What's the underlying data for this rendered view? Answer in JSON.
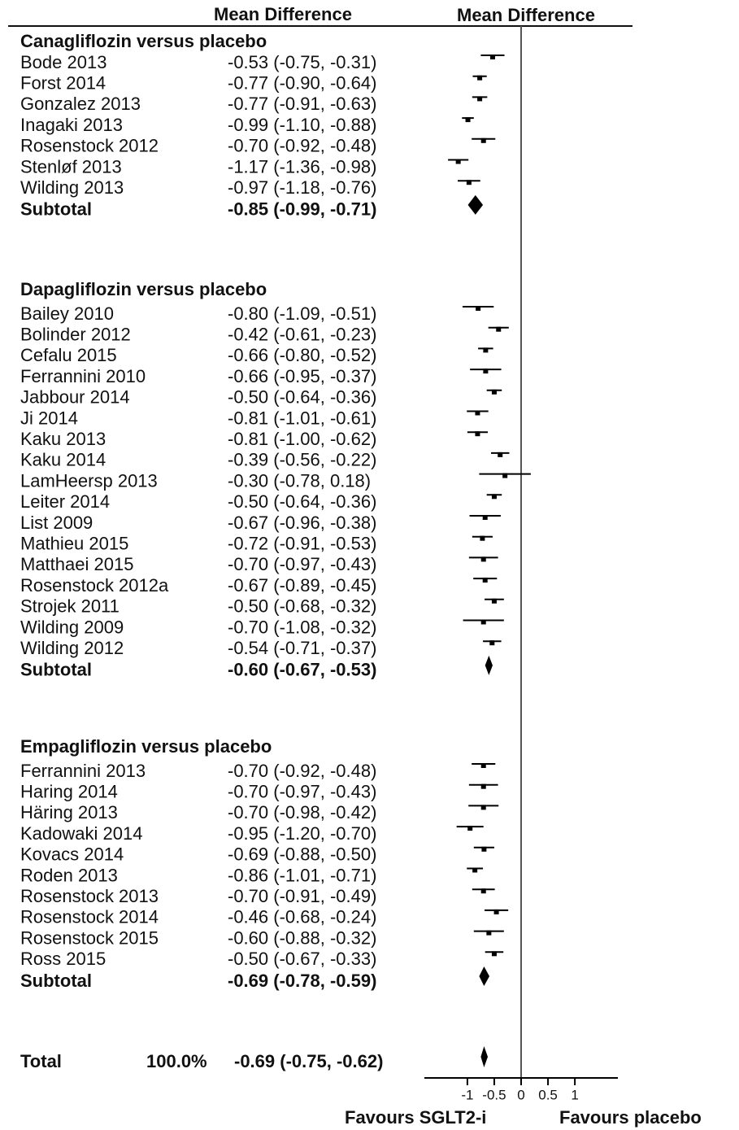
{
  "chart_data": {
    "type": "forest",
    "column_headers": [
      "Mean Difference",
      "Mean Difference"
    ],
    "groups": [
      {
        "title": "Canagliflozin versus placebo",
        "studies": [
          {
            "name": "Bode 2013",
            "value": -0.53,
            "lower": -0.75,
            "upper": -0.31,
            "label": "-0.53 (-0.75, -0.31)"
          },
          {
            "name": "Forst 2014",
            "value": -0.77,
            "lower": -0.9,
            "upper": -0.64,
            "label": "-0.77 (-0.90, -0.64)"
          },
          {
            "name": "Gonzalez 2013",
            "value": -0.77,
            "lower": -0.91,
            "upper": -0.63,
            "label": "-0.77 (-0.91, -0.63)"
          },
          {
            "name": "Inagaki 2013",
            "value": -0.99,
            "lower": -1.1,
            "upper": -0.88,
            "label": "-0.99 (-1.10, -0.88)"
          },
          {
            "name": "Rosenstock 2012",
            "value": -0.7,
            "lower": -0.92,
            "upper": -0.48,
            "label": "-0.70 (-0.92, -0.48)"
          },
          {
            "name": "Stenløf 2013",
            "value": -1.17,
            "lower": -1.36,
            "upper": -0.98,
            "label": "-1.17 (-1.36, -0.98)"
          },
          {
            "name": "Wilding 2013",
            "value": -0.97,
            "lower": -1.18,
            "upper": -0.76,
            "label": "-0.97 (-1.18, -0.76)"
          }
        ],
        "subtotal": {
          "name": "Subtotal",
          "value": -0.85,
          "lower": -0.99,
          "upper": -0.71,
          "label": "-0.85 (-0.99, -0.71)"
        }
      },
      {
        "title": "Dapagliflozin versus placebo",
        "studies": [
          {
            "name": "Bailey 2010",
            "value": -0.8,
            "lower": -1.09,
            "upper": -0.51,
            "label": "-0.80 (-1.09, -0.51)"
          },
          {
            "name": "Bolinder 2012",
            "value": -0.42,
            "lower": -0.61,
            "upper": -0.23,
            "label": "-0.42 (-0.61, -0.23)"
          },
          {
            "name": "Cefalu 2015",
            "value": -0.66,
            "lower": -0.8,
            "upper": -0.52,
            "label": "-0.66 (-0.80, -0.52)"
          },
          {
            "name": "Ferrannini 2010",
            "value": -0.66,
            "lower": -0.95,
            "upper": -0.37,
            "label": "-0.66 (-0.95, -0.37)"
          },
          {
            "name": "Jabbour 2014",
            "value": -0.5,
            "lower": -0.64,
            "upper": -0.36,
            "label": "-0.50 (-0.64, -0.36)"
          },
          {
            "name": "Ji 2014",
            "value": -0.81,
            "lower": -1.01,
            "upper": -0.61,
            "label": "-0.81 (-1.01, -0.61)"
          },
          {
            "name": "Kaku 2013",
            "value": -0.81,
            "lower": -1.0,
            "upper": -0.62,
            "label": "-0.81 (-1.00, -0.62)"
          },
          {
            "name": "Kaku 2014",
            "value": -0.39,
            "lower": -0.56,
            "upper": -0.22,
            "label": "-0.39 (-0.56, -0.22)"
          },
          {
            "name": "LamHeersp 2013",
            "value": -0.3,
            "lower": -0.78,
            "upper": 0.18,
            "label": "-0.30 (-0.78, 0.18)"
          },
          {
            "name": "Leiter 2014",
            "value": -0.5,
            "lower": -0.64,
            "upper": -0.36,
            "label": "-0.50 (-0.64, -0.36)"
          },
          {
            "name": "List 2009",
            "value": -0.67,
            "lower": -0.96,
            "upper": -0.38,
            "label": "-0.67 (-0.96, -0.38)"
          },
          {
            "name": "Mathieu 2015",
            "value": -0.72,
            "lower": -0.91,
            "upper": -0.53,
            "label": "-0.72 (-0.91, -0.53)"
          },
          {
            "name": "Matthaei 2015",
            "value": -0.7,
            "lower": -0.97,
            "upper": -0.43,
            "label": "-0.70 (-0.97, -0.43)"
          },
          {
            "name": "Rosenstock 2012a",
            "value": -0.67,
            "lower": -0.89,
            "upper": -0.45,
            "label": "-0.67 (-0.89, -0.45)"
          },
          {
            "name": "Strojek 2011",
            "value": -0.5,
            "lower": -0.68,
            "upper": -0.32,
            "label": "-0.50 (-0.68, -0.32)"
          },
          {
            "name": "Wilding 2009",
            "value": -0.7,
            "lower": -1.08,
            "upper": -0.32,
            "label": "-0.70 (-1.08, -0.32)"
          },
          {
            "name": "Wilding 2012",
            "value": -0.54,
            "lower": -0.71,
            "upper": -0.37,
            "label": "-0.54 (-0.71, -0.37)"
          }
        ],
        "subtotal": {
          "name": "Subtotal",
          "value": -0.6,
          "lower": -0.67,
          "upper": -0.53,
          "label": "-0.60 (-0.67, -0.53)"
        }
      },
      {
        "title": "Empagliflozin versus placebo",
        "studies": [
          {
            "name": "Ferrannini 2013",
            "value": -0.7,
            "lower": -0.92,
            "upper": -0.48,
            "label": "-0.70 (-0.92, -0.48)"
          },
          {
            "name": "Haring 2014",
            "value": -0.7,
            "lower": -0.97,
            "upper": -0.43,
            "label": "-0.70 (-0.97, -0.43)"
          },
          {
            "name": "Häring 2013",
            "value": -0.7,
            "lower": -0.98,
            "upper": -0.42,
            "label": "-0.70 (-0.98, -0.42)"
          },
          {
            "name": "Kadowaki 2014",
            "value": -0.95,
            "lower": -1.2,
            "upper": -0.7,
            "label": "-0.95 (-1.20, -0.70)"
          },
          {
            "name": "Kovacs 2014",
            "value": -0.69,
            "lower": -0.88,
            "upper": -0.5,
            "label": "-0.69 (-0.88, -0.50)"
          },
          {
            "name": "Roden 2013",
            "value": -0.86,
            "lower": -1.01,
            "upper": -0.71,
            "label": "-0.86 (-1.01, -0.71)"
          },
          {
            "name": "Rosenstock 2013",
            "value": -0.7,
            "lower": -0.91,
            "upper": -0.49,
            "label": "-0.70 (-0.91, -0.49)"
          },
          {
            "name": "Rosenstock 2014",
            "value": -0.46,
            "lower": -0.68,
            "upper": -0.24,
            "label": "-0.46 (-0.68, -0.24)"
          },
          {
            "name": "Rosenstock 2015",
            "value": -0.6,
            "lower": -0.88,
            "upper": -0.32,
            "label": "-0.60 (-0.88, -0.32)"
          },
          {
            "name": "Ross 2015",
            "value": -0.5,
            "lower": -0.67,
            "upper": -0.33,
            "label": "-0.50 (-0.67, -0.33)"
          }
        ],
        "subtotal": {
          "name": "Subtotal",
          "value": -0.69,
          "lower": -0.78,
          "upper": -0.59,
          "label": "-0.69 (-0.78, -0.59)"
        }
      }
    ],
    "total": {
      "name": "Total",
      "weight_label": "100.0%",
      "value": -0.69,
      "lower": -0.75,
      "upper": -0.62,
      "label": "-0.69 (-0.75, -0.62)"
    },
    "xlim": [
      -1.8,
      1.8
    ],
    "xticks": [
      -1,
      -0.5,
      0,
      0.5,
      1
    ],
    "x_labels": [
      "Favours SGLT2-i",
      "Favours placebo"
    ]
  }
}
